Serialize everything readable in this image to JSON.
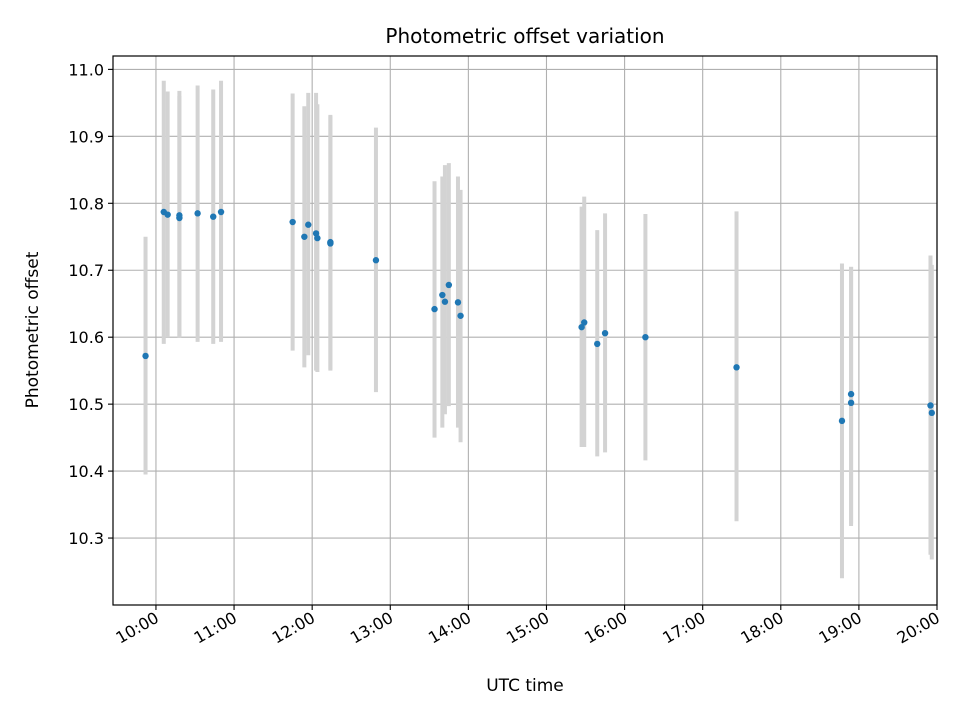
{
  "chart_data": {
    "type": "scatter",
    "title": "Photometric offset variation",
    "xlabel": "UTC time",
    "ylabel": "Photometric offset",
    "xlim": [
      "09:27",
      "20:00"
    ],
    "ylim": [
      10.2,
      11.02
    ],
    "grid": true,
    "x_ticks": [
      "10:00",
      "11:00",
      "12:00",
      "13:00",
      "14:00",
      "15:00",
      "16:00",
      "17:00",
      "18:00",
      "19:00",
      "20:00"
    ],
    "y_ticks": [
      10.3,
      10.4,
      10.5,
      10.6,
      10.7,
      10.8,
      10.9,
      11.0
    ],
    "point_color": "#1f77b4",
    "errorbar_color": "#d3d3d3",
    "points": [
      {
        "t": "09:52",
        "y": 10.572,
        "lo": 10.395,
        "hi": 10.75
      },
      {
        "t": "10:06",
        "y": 10.787,
        "lo": 10.59,
        "hi": 10.983
      },
      {
        "t": "10:09",
        "y": 10.783,
        "lo": 10.6,
        "hi": 10.967
      },
      {
        "t": "10:18",
        "y": 10.782,
        "lo": 10.6,
        "hi": 10.968
      },
      {
        "t": "10:18",
        "y": 10.778,
        "lo": 10.6,
        "hi": 10.96
      },
      {
        "t": "10:32",
        "y": 10.785,
        "lo": 10.593,
        "hi": 10.976
      },
      {
        "t": "10:44",
        "y": 10.78,
        "lo": 10.59,
        "hi": 10.97
      },
      {
        "t": "10:50",
        "y": 10.787,
        "lo": 10.593,
        "hi": 10.983
      },
      {
        "t": "11:45",
        "y": 10.772,
        "lo": 10.58,
        "hi": 10.964
      },
      {
        "t": "11:54",
        "y": 10.75,
        "lo": 10.555,
        "hi": 10.945
      },
      {
        "t": "11:57",
        "y": 10.768,
        "lo": 10.573,
        "hi": 10.965
      },
      {
        "t": "12:03",
        "y": 10.755,
        "lo": 10.55,
        "hi": 10.965
      },
      {
        "t": "12:04",
        "y": 10.748,
        "lo": 10.548,
        "hi": 10.948
      },
      {
        "t": "12:14",
        "y": 10.742,
        "lo": 10.552,
        "hi": 10.932
      },
      {
        "t": "12:14",
        "y": 10.74,
        "lo": 10.55,
        "hi": 10.93
      },
      {
        "t": "12:49",
        "y": 10.715,
        "lo": 10.518,
        "hi": 10.913
      },
      {
        "t": "13:34",
        "y": 10.642,
        "lo": 10.45,
        "hi": 10.833
      },
      {
        "t": "13:40",
        "y": 10.663,
        "lo": 10.465,
        "hi": 10.84
      },
      {
        "t": "13:42",
        "y": 10.653,
        "lo": 10.485,
        "hi": 10.857
      },
      {
        "t": "13:45",
        "y": 10.678,
        "lo": 10.497,
        "hi": 10.86
      },
      {
        "t": "13:52",
        "y": 10.652,
        "lo": 10.465,
        "hi": 10.84
      },
      {
        "t": "13:54",
        "y": 10.632,
        "lo": 10.443,
        "hi": 10.82
      },
      {
        "t": "15:27",
        "y": 10.615,
        "lo": 10.436,
        "hi": 10.795
      },
      {
        "t": "15:29",
        "y": 10.622,
        "lo": 10.436,
        "hi": 10.81
      },
      {
        "t": "15:39",
        "y": 10.59,
        "lo": 10.422,
        "hi": 10.76
      },
      {
        "t": "15:45",
        "y": 10.606,
        "lo": 10.428,
        "hi": 10.785
      },
      {
        "t": "16:16",
        "y": 10.6,
        "lo": 10.416,
        "hi": 10.784
      },
      {
        "t": "17:26",
        "y": 10.555,
        "lo": 10.325,
        "hi": 10.788
      },
      {
        "t": "18:47",
        "y": 10.475,
        "lo": 10.24,
        "hi": 10.71
      },
      {
        "t": "18:54",
        "y": 10.502,
        "lo": 10.318,
        "hi": 10.705
      },
      {
        "t": "18:54",
        "y": 10.515,
        "lo": 10.322,
        "hi": 10.705
      },
      {
        "t": "19:55",
        "y": 10.498,
        "lo": 10.275,
        "hi": 10.722
      },
      {
        "t": "19:56",
        "y": 10.487,
        "lo": 10.268,
        "hi": 10.708
      }
    ]
  }
}
